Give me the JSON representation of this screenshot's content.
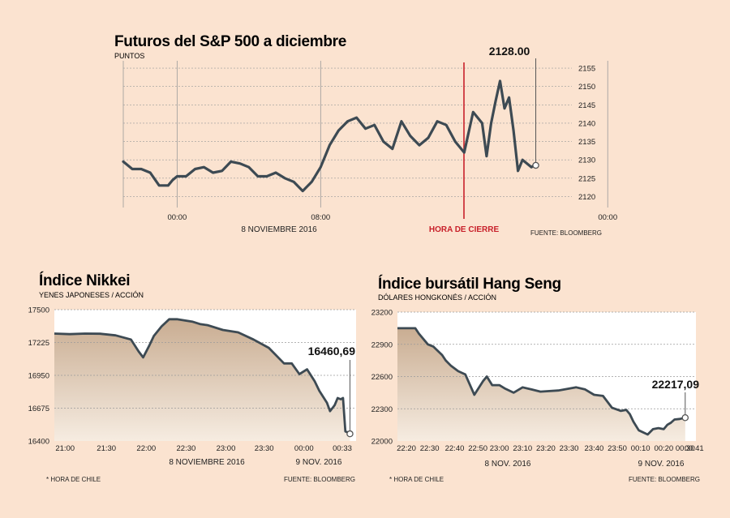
{
  "chart_data": [
    {
      "type": "line",
      "title": "Futuros del S&P 500 a diciembre",
      "subtitle": "PUNTOS",
      "y_ticks": [
        2120,
        2125,
        2130,
        2135,
        2140,
        2145,
        2150,
        2155
      ],
      "ylim": [
        2117,
        2157
      ],
      "x_ticks": [
        "00:00",
        "08:00",
        "00:00"
      ],
      "xlabel": "8 NOVIEMBRE 2016",
      "annotation": {
        "label": "HORA DE CIERRE",
        "color": "#c8202a"
      },
      "last_value_label": "2128.00",
      "source": "FUENTE: BLOOMBERG",
      "grid": "horizontal dashed",
      "y_axis_side": "right",
      "x": [
        -3.0,
        -2.5,
        -2.0,
        -1.5,
        -1.0,
        -0.5,
        -0.25,
        0.0,
        0.5,
        1.0,
        1.5,
        2.0,
        2.5,
        3.0,
        3.5,
        4.0,
        4.5,
        5.0,
        5.5,
        6.0,
        6.5,
        7.0,
        7.5,
        8.0,
        8.5,
        9.0,
        9.5,
        10.0,
        10.5,
        11.0,
        11.5,
        12.0,
        12.5,
        13.0,
        13.5,
        14.0,
        14.5,
        15.0,
        15.5,
        16.0,
        16.5,
        17.0,
        17.25,
        17.5,
        17.75,
        18.0,
        18.25,
        18.5,
        18.75,
        19.0,
        19.25,
        19.5,
        19.75,
        19.9
      ],
      "values": [
        2129.5,
        2127.5,
        2127.5,
        2126.5,
        2123.0,
        2123.0,
        2124.5,
        2125.5,
        2125.5,
        2127.5,
        2128.0,
        2126.5,
        2127.0,
        2129.5,
        2129.0,
        2128.0,
        2125.5,
        2125.5,
        2126.5,
        2125.0,
        2124.0,
        2121.5,
        2124.0,
        2128.0,
        2134.0,
        2138.0,
        2140.5,
        2141.5,
        2138.5,
        2139.5,
        2135.0,
        2133.0,
        2140.5,
        2136.5,
        2134.0,
        2136.0,
        2140.5,
        2139.5,
        2135.0,
        2132.0,
        2143.0,
        2140.0,
        2131.0,
        2140.0,
        2146.0,
        2151.5,
        2144.0,
        2147.0,
        2138.0,
        2127.0,
        2130.0,
        2129.0,
        2128.0,
        2128.5
      ]
    },
    {
      "type": "area",
      "title": "Índice Nikkei",
      "subtitle": "YENES JAPONESES / ACCIÓN",
      "y_ticks": [
        16400,
        16675,
        16950,
        17225,
        17500
      ],
      "ylim": [
        16400,
        17500
      ],
      "x_ticks": [
        "21:00",
        "21:30",
        "22:00",
        "22:30",
        "23:00",
        "23:30",
        "00:00",
        "00:33"
      ],
      "xlabel": "8 NOVIEMBRE 2016",
      "xlabel2": "9 NOV. 2016",
      "last_value_label": "16460,69",
      "footnote": "* HORA DE CHILE",
      "source": "FUENTE: BLOOMBERG",
      "grid": "horizontal dashed",
      "x": [
        0,
        10,
        20,
        30,
        40,
        50,
        55,
        58,
        62,
        65,
        70,
        75,
        80,
        90,
        95,
        100,
        110,
        120,
        130,
        140,
        150,
        155,
        160,
        165,
        170,
        173,
        178,
        180,
        183,
        185,
        187,
        188.5,
        190,
        192,
        193
      ],
      "values": [
        17300,
        17295,
        17300,
        17298,
        17285,
        17250,
        17150,
        17100,
        17200,
        17280,
        17360,
        17420,
        17420,
        17400,
        17380,
        17370,
        17330,
        17310,
        17250,
        17180,
        17050,
        17050,
        16960,
        17000,
        16900,
        16820,
        16720,
        16650,
        16700,
        16760,
        16750,
        16760,
        16480,
        16470,
        16460
      ]
    },
    {
      "type": "area",
      "title": "Índice bursátil Hang Seng",
      "subtitle": "DÓLARES HONGKONÉS / ACCIÓN",
      "y_ticks": [
        22000,
        22300,
        22600,
        22900,
        23200
      ],
      "ylim": [
        22000,
        23200
      ],
      "x_ticks": [
        "22:20",
        "22:30",
        "22:40",
        "22:50",
        "23:00",
        "23:10",
        "23:20",
        "23:30",
        "23:40",
        "23:50",
        "00:10",
        "00:20",
        "00:30",
        "00:41"
      ],
      "xlabel": "8 NOV. 2016",
      "xlabel2": "9 NOV. 2016",
      "last_value_label": "22217,09",
      "footnote": "* HORA DE CHILE",
      "source": "FUENTE: BLOOMBERG",
      "grid": "horizontal dashed",
      "x": [
        0,
        10,
        12,
        17,
        20,
        25,
        27,
        30,
        34,
        38,
        43,
        48,
        50,
        53,
        57,
        60,
        65,
        70,
        75,
        80,
        90,
        100,
        105,
        110,
        115,
        120,
        125,
        128,
        130,
        132,
        135,
        140,
        143,
        146,
        149,
        151,
        153,
        155,
        158,
        161
      ],
      "values": [
        23050,
        23050,
        23000,
        22900,
        22880,
        22800,
        22750,
        22700,
        22650,
        22620,
        22430,
        22560,
        22600,
        22520,
        22520,
        22490,
        22450,
        22500,
        22480,
        22460,
        22470,
        22500,
        22480,
        22430,
        22420,
        22310,
        22280,
        22290,
        22250,
        22180,
        22100,
        22060,
        22110,
        22120,
        22110,
        22150,
        22170,
        22200,
        22205,
        22217
      ]
    }
  ]
}
